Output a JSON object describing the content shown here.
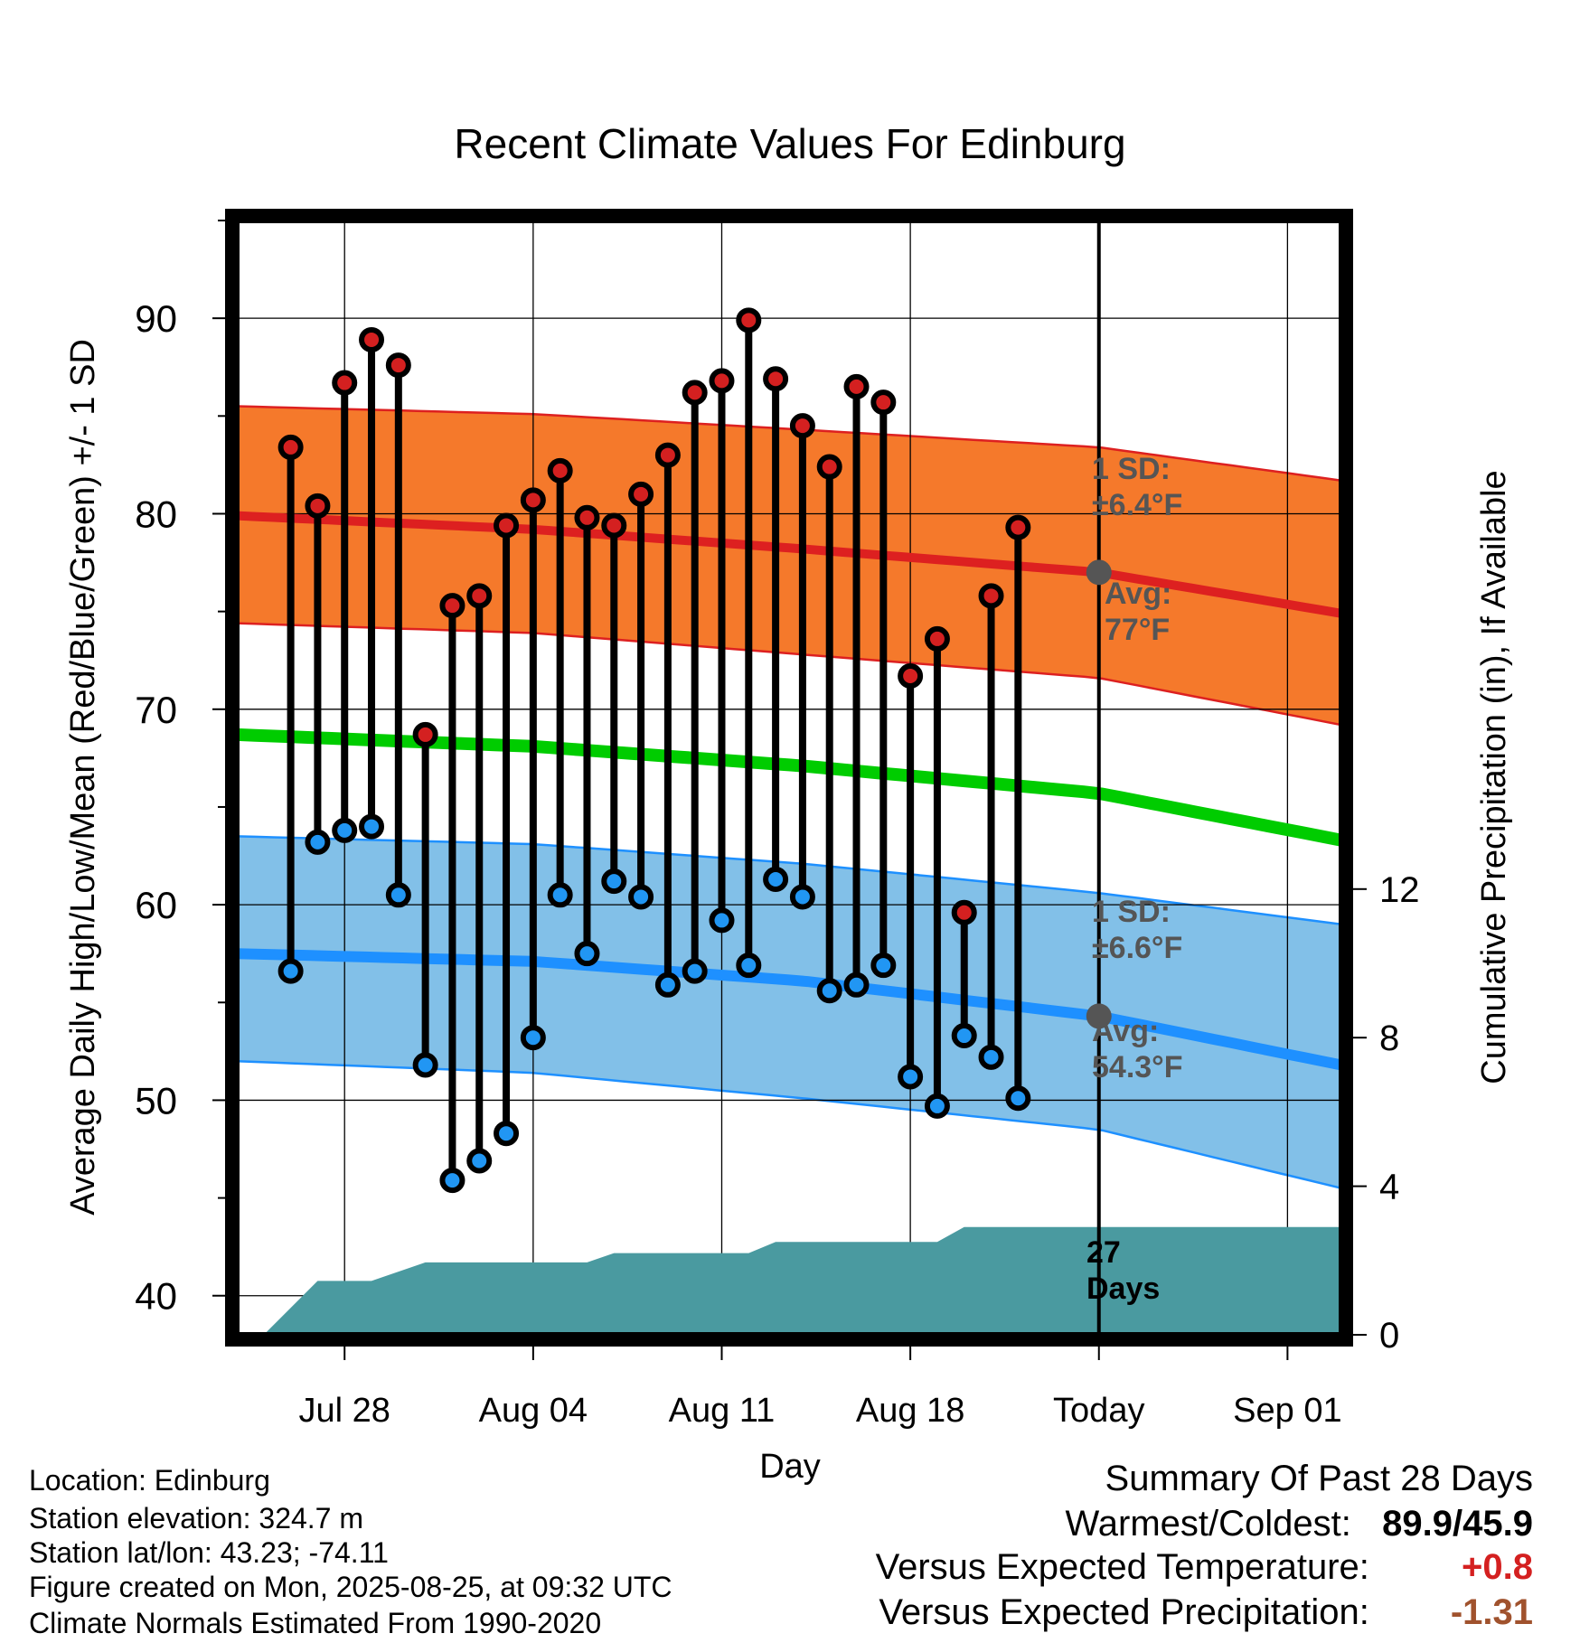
{
  "chart_data": {
    "type": "line",
    "title": "Recent Climate Values For Edinburg",
    "xlabel": "Day",
    "ylabel": "Average Daily High/Low/Mean (Red/Blue/Green) +/- 1 SD",
    "y2label": "Cumulative Precipitation (in), If Available",
    "ylim": [
      38,
      95
    ],
    "y2lim": [
      0,
      30
    ],
    "yticks": [
      40,
      50,
      60,
      70,
      80,
      90
    ],
    "y2ticks": [
      0,
      4,
      8,
      12
    ],
    "x_range": [
      "2025-07-24",
      "2025-09-03"
    ],
    "x_ticks": [
      {
        "date": "2025-07-28",
        "label": "Jul 28"
      },
      {
        "date": "2025-08-04",
        "label": "Aug 04"
      },
      {
        "date": "2025-08-11",
        "label": "Aug 11"
      },
      {
        "date": "2025-08-18",
        "label": "Aug 18"
      },
      {
        "date": "2025-08-25",
        "label": "Today"
      },
      {
        "date": "2025-09-01",
        "label": "Sep 01"
      }
    ],
    "grid": true,
    "colors": {
      "high": "#dd2020",
      "low": "#1e90ff",
      "mean": "#00cc00",
      "high_band": "#f5792b",
      "low_band": "#82c0e8",
      "precip": "#4a9aa0"
    },
    "normals": {
      "dates": [
        "2025-07-24",
        "2025-08-04",
        "2025-08-14",
        "2025-08-25",
        "2025-09-03"
      ],
      "high_mean": [
        79.9,
        79.2,
        78.2,
        77.0,
        74.9
      ],
      "high_upper": [
        85.5,
        85.1,
        84.3,
        83.4,
        81.7
      ],
      "high_lower": [
        74.4,
        73.9,
        72.8,
        71.6,
        69.2
      ],
      "low_mean": [
        57.5,
        57.1,
        56.1,
        54.3,
        51.8
      ],
      "low_upper": [
        63.5,
        63.1,
        62.1,
        60.6,
        59.0
      ],
      "low_lower": [
        52.0,
        51.4,
        50.1,
        48.5,
        45.5
      ],
      "mean": [
        68.7,
        68.1,
        67.1,
        65.7,
        63.3
      ]
    },
    "series": [
      {
        "name": "High",
        "x": [
          "2025-07-26",
          "2025-07-27",
          "2025-07-28",
          "2025-07-29",
          "2025-07-30",
          "2025-07-31",
          "2025-08-01",
          "2025-08-02",
          "2025-08-03",
          "2025-08-04",
          "2025-08-05",
          "2025-08-06",
          "2025-08-07",
          "2025-08-08",
          "2025-08-09",
          "2025-08-10",
          "2025-08-11",
          "2025-08-12",
          "2025-08-13",
          "2025-08-14",
          "2025-08-15",
          "2025-08-16",
          "2025-08-17",
          "2025-08-18",
          "2025-08-19",
          "2025-08-20",
          "2025-08-21",
          "2025-08-22"
        ],
        "values": [
          83.4,
          80.4,
          86.7,
          88.9,
          87.6,
          68.7,
          75.3,
          75.8,
          79.4,
          80.7,
          82.2,
          79.8,
          79.4,
          81.0,
          83.0,
          86.2,
          86.8,
          89.9,
          86.9,
          84.5,
          82.4,
          86.5,
          85.7,
          71.7,
          73.6,
          59.6,
          75.8,
          79.3
        ]
      },
      {
        "name": "Low",
        "x": [
          "2025-07-26",
          "2025-07-27",
          "2025-07-28",
          "2025-07-29",
          "2025-07-30",
          "2025-07-31",
          "2025-08-01",
          "2025-08-02",
          "2025-08-03",
          "2025-08-04",
          "2025-08-05",
          "2025-08-06",
          "2025-08-07",
          "2025-08-08",
          "2025-08-09",
          "2025-08-10",
          "2025-08-11",
          "2025-08-12",
          "2025-08-13",
          "2025-08-14",
          "2025-08-15",
          "2025-08-16",
          "2025-08-17",
          "2025-08-18",
          "2025-08-19",
          "2025-08-20",
          "2025-08-21",
          "2025-08-22"
        ],
        "values": [
          56.6,
          63.2,
          63.8,
          64.0,
          60.5,
          51.8,
          45.9,
          46.9,
          48.3,
          53.2,
          60.5,
          57.5,
          61.2,
          60.4,
          55.9,
          56.6,
          59.2,
          56.9,
          61.3,
          60.4,
          55.6,
          55.9,
          56.9,
          51.2,
          49.7,
          53.3,
          52.2,
          50.1
        ]
      },
      {
        "name": "Cumulative Precipitation",
        "x": [
          "2025-07-24",
          "2025-07-25",
          "2025-07-27",
          "2025-07-29",
          "2025-07-31",
          "2025-08-06",
          "2025-08-07",
          "2025-08-12",
          "2025-08-13",
          "2025-08-19",
          "2025-08-20",
          "2025-09-03"
        ],
        "values": [
          0.0,
          0.0,
          1.45,
          1.45,
          1.95,
          1.95,
          2.2,
          2.2,
          2.5,
          2.5,
          2.9,
          2.9
        ]
      }
    ],
    "annotations": [
      {
        "label": "1 SD:",
        "value": "±6.4°F"
      },
      {
        "label": "Avg:",
        "value": "77°F"
      },
      {
        "label": "1 SD:",
        "value": "±6.6°F"
      },
      {
        "label": "Avg:",
        "value": "54.3°F"
      },
      {
        "label": "27",
        "value": "Days"
      }
    ]
  },
  "info": {
    "location": "Location: Edinburg",
    "elevation": "Station elevation: 324.7 m",
    "latlon": "Station lat/lon: 43.23; -74.11",
    "created": "Figure created on Mon, 2025-08-25, at 09:32 UTC",
    "normals": "Climate Normals Estimated From 1990-2020"
  },
  "summary": {
    "title": "Summary Of Past 28 Days",
    "warmest_label": "Warmest/Coldest:",
    "warmest_value": "89.9/45.9",
    "temp_label": "Versus Expected Temperature:",
    "temp_value": "+0.8",
    "temp_color": "#d42020",
    "precip_label": "Versus Expected Precipitation:",
    "precip_value": "-1.31",
    "precip_color": "#a0522d"
  }
}
